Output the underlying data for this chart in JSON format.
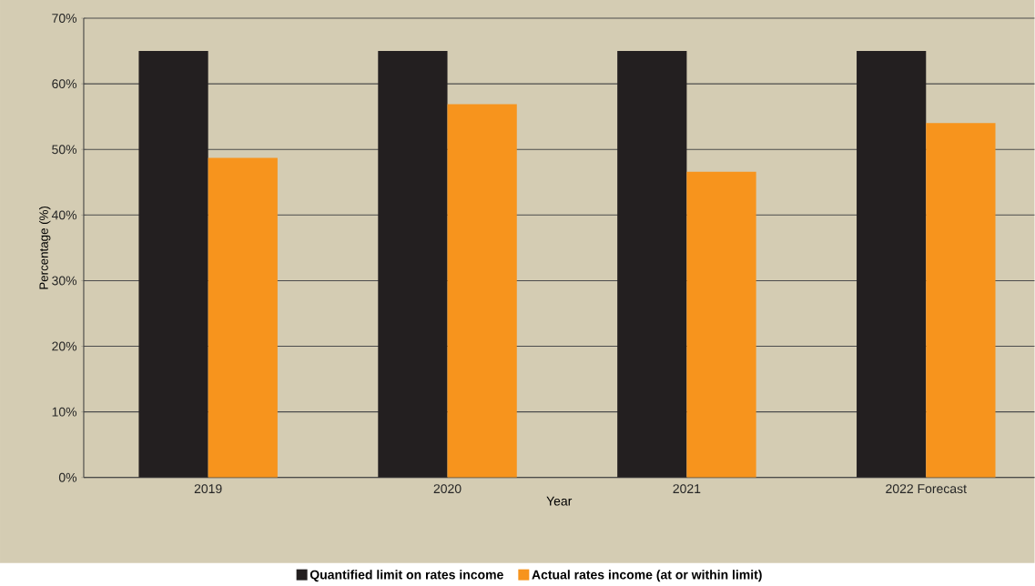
{
  "chart_data": {
    "type": "bar",
    "xlabel": "Year",
    "ylabel": "Percentage (%)",
    "categories": [
      "2019",
      "2020",
      "2021",
      "2022 Forecast"
    ],
    "series": [
      {
        "name": "Quantified limit on rates income",
        "color": "#231f20",
        "values": [
          65.0,
          65.0,
          65.0,
          65.0
        ]
      },
      {
        "name": "Actual rates income (at or within limit)",
        "color": "#f7941d",
        "values": [
          48.7,
          56.9,
          46.6,
          54.0
        ]
      }
    ],
    "ylim": [
      0,
      70
    ],
    "yticks": [
      {
        "value": 0,
        "label": "0%"
      },
      {
        "value": 10,
        "label": "10%"
      },
      {
        "value": 20,
        "label": "20%"
      },
      {
        "value": 30,
        "label": "30%"
      },
      {
        "value": 40,
        "label": "40%"
      },
      {
        "value": 50,
        "label": "50%"
      },
      {
        "value": 60,
        "label": "60%"
      },
      {
        "value": 70,
        "label": "70%"
      }
    ],
    "grid": "y",
    "legend": "bottom"
  }
}
